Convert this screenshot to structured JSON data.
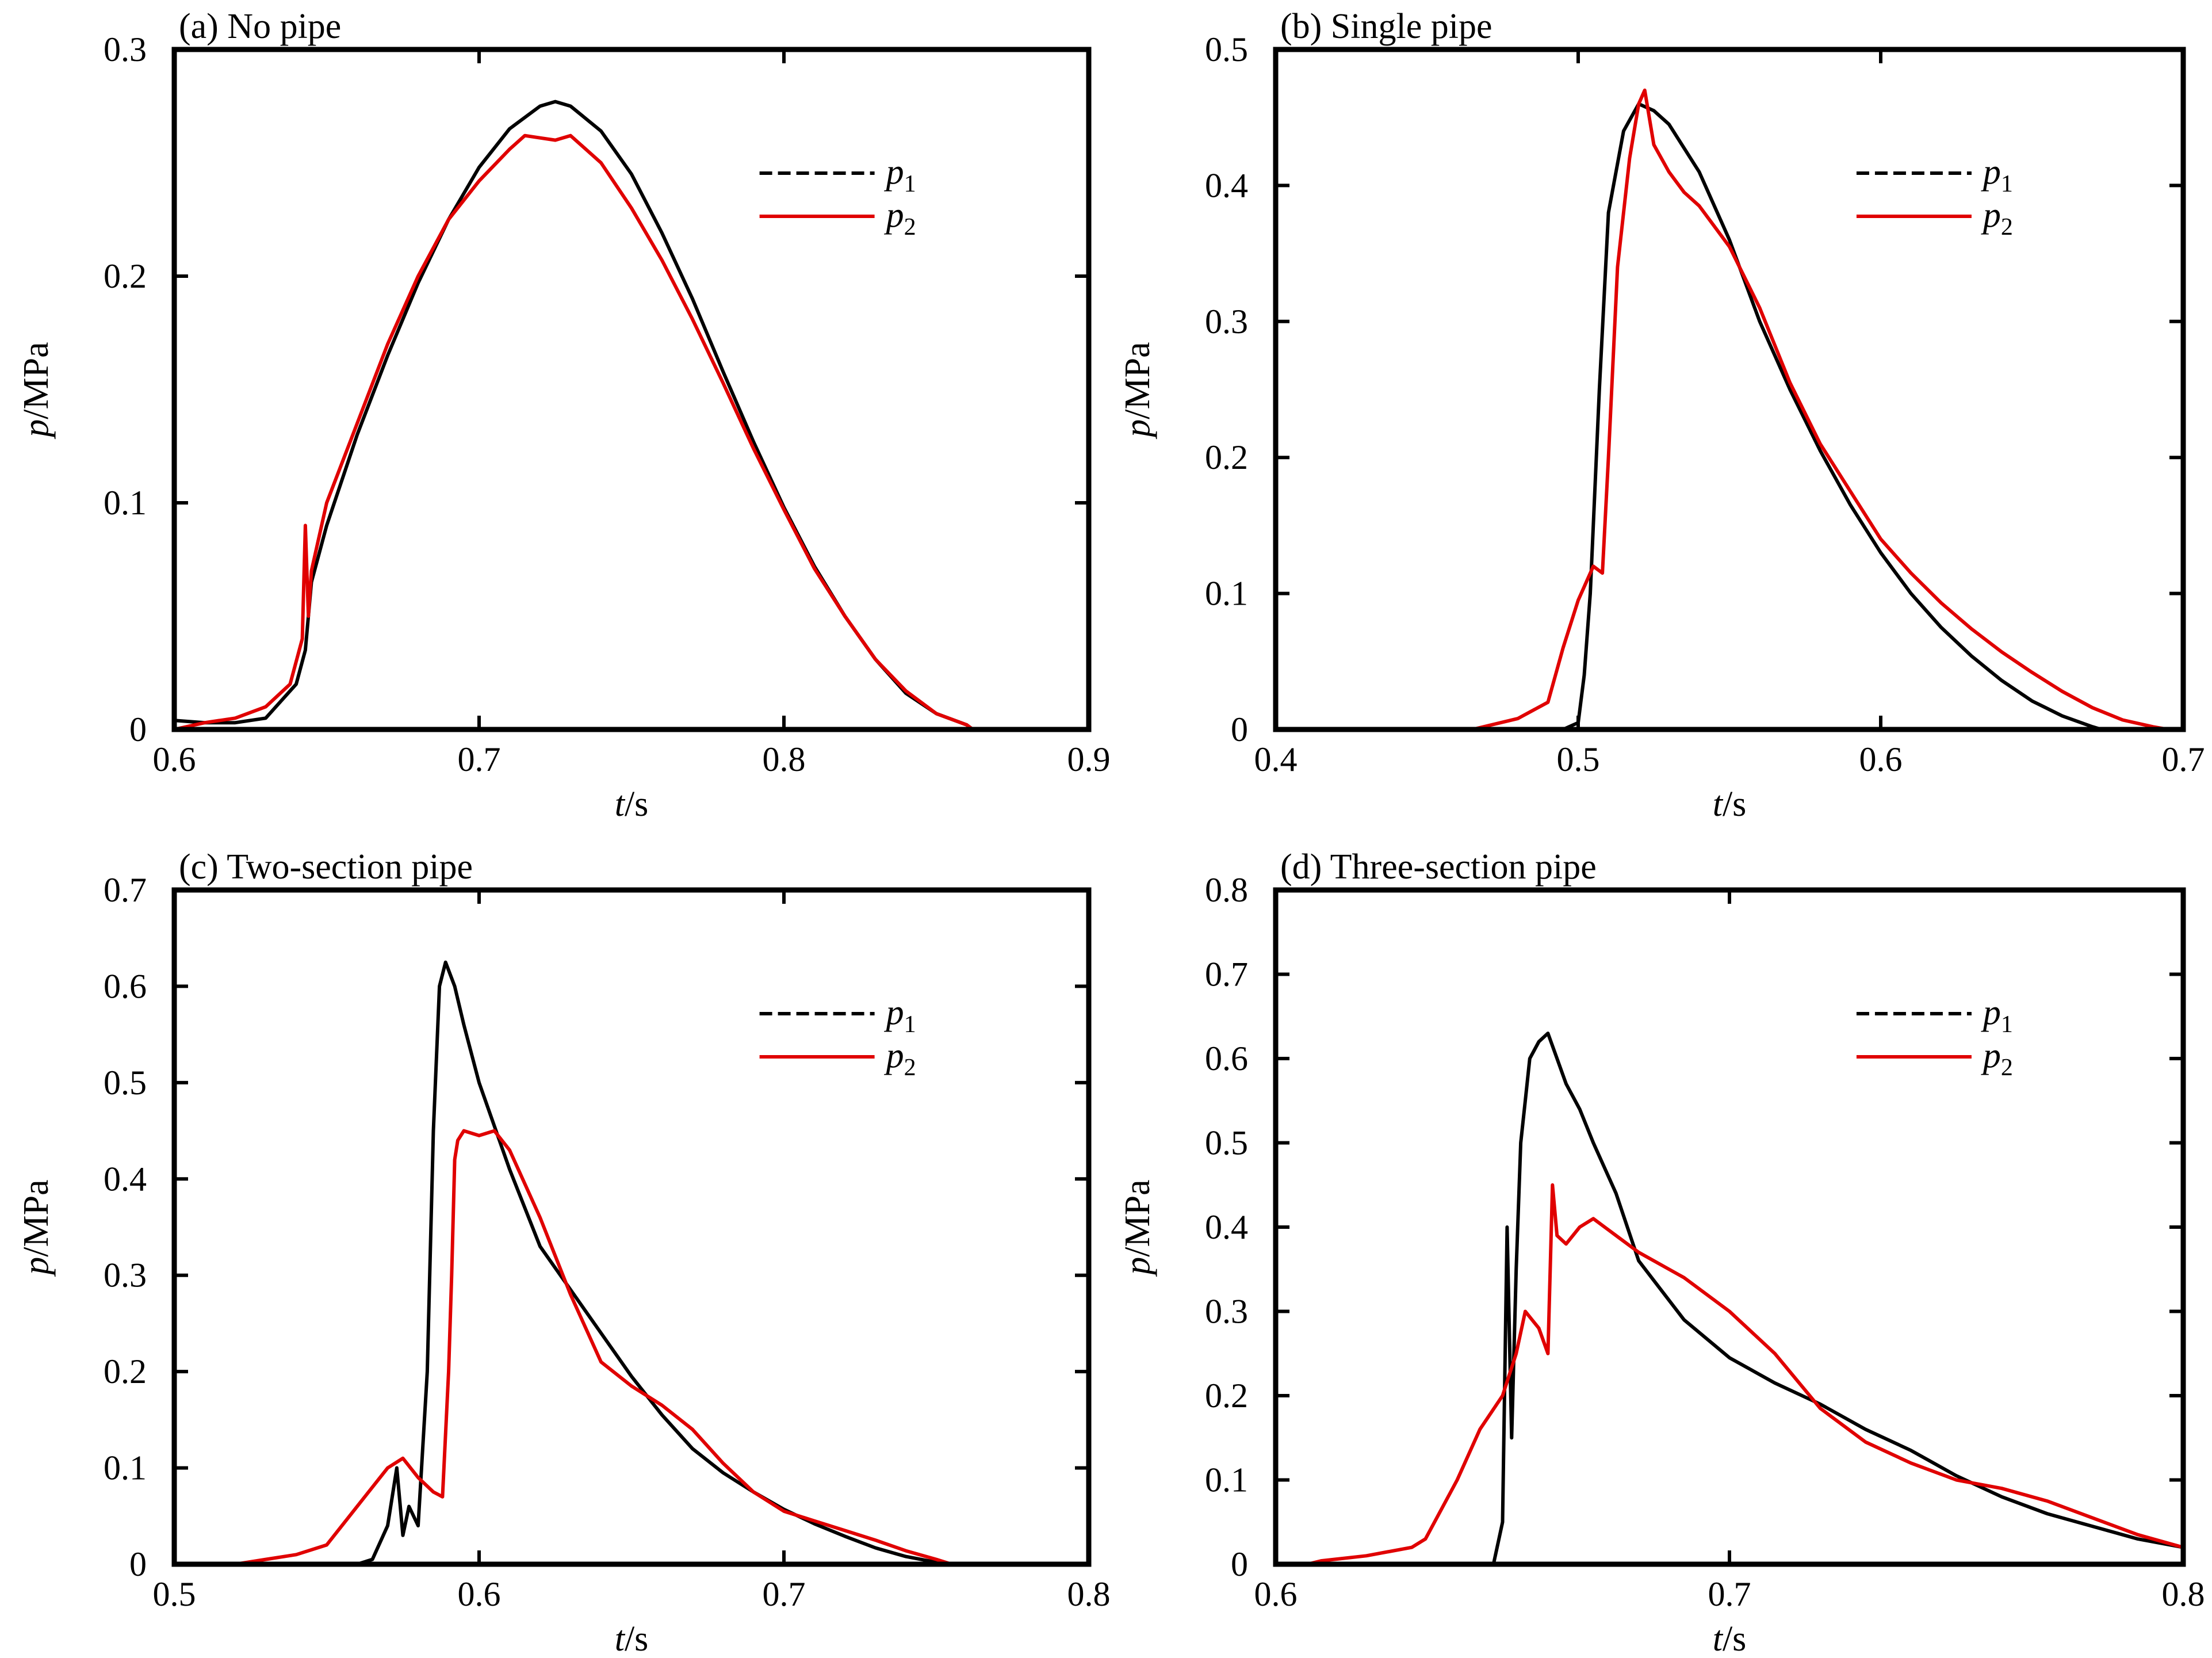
{
  "chart_data": [
    {
      "type": "line",
      "title": "(a)  No pipe",
      "xlabel_var": "t",
      "xlabel_unit": "/s",
      "ylabel_var": "p",
      "ylabel_unit": "/MPa",
      "xlim": [
        0.6,
        0.9
      ],
      "ylim": [
        0,
        0.3
      ],
      "xticks": [
        0.6,
        0.7,
        0.8,
        0.9
      ],
      "yticks": [
        0,
        0.1,
        0.2,
        0.3
      ],
      "xtick_labels": [
        "0.6",
        "0.7",
        "0.8",
        "0.9"
      ],
      "ytick_labels": [
        "0",
        "0.1",
        "0.2",
        "0.3"
      ],
      "legend": "top-right",
      "grid": false,
      "series": [
        {
          "name": "p",
          "sub": "1",
          "color": "#000000",
          "x": [
            0.6,
            0.61,
            0.62,
            0.63,
            0.64,
            0.643,
            0.645,
            0.65,
            0.66,
            0.67,
            0.68,
            0.69,
            0.7,
            0.71,
            0.72,
            0.725,
            0.73,
            0.74,
            0.75,
            0.76,
            0.77,
            0.78,
            0.79,
            0.8,
            0.81,
            0.82,
            0.83,
            0.84,
            0.85,
            0.86,
            0.862
          ],
          "y": [
            0.004,
            0.003,
            0.003,
            0.005,
            0.02,
            0.035,
            0.065,
            0.09,
            0.13,
            0.165,
            0.197,
            0.225,
            0.248,
            0.265,
            0.275,
            0.277,
            0.275,
            0.264,
            0.245,
            0.219,
            0.19,
            0.158,
            0.127,
            0.098,
            0.072,
            0.05,
            0.031,
            0.016,
            0.007,
            0.002,
            0.0
          ]
        },
        {
          "name": "p",
          "sub": "2",
          "color": "#e00000",
          "x": [
            0.6,
            0.61,
            0.62,
            0.63,
            0.638,
            0.642,
            0.643,
            0.644,
            0.645,
            0.65,
            0.66,
            0.67,
            0.68,
            0.69,
            0.7,
            0.71,
            0.715,
            0.72,
            0.725,
            0.73,
            0.74,
            0.75,
            0.76,
            0.77,
            0.78,
            0.79,
            0.8,
            0.81,
            0.82,
            0.83,
            0.84,
            0.85,
            0.86,
            0.862
          ],
          "y": [
            0.0,
            0.003,
            0.005,
            0.01,
            0.02,
            0.04,
            0.09,
            0.05,
            0.07,
            0.1,
            0.135,
            0.17,
            0.2,
            0.225,
            0.242,
            0.256,
            0.262,
            0.261,
            0.26,
            0.262,
            0.25,
            0.23,
            0.207,
            0.181,
            0.153,
            0.124,
            0.097,
            0.071,
            0.05,
            0.031,
            0.017,
            0.007,
            0.002,
            0.0
          ]
        }
      ]
    },
    {
      "type": "line",
      "title": "(b)  Single pipe",
      "xlabel_var": "t",
      "xlabel_unit": "/s",
      "ylabel_var": "p",
      "ylabel_unit": "/MPa",
      "xlim": [
        0.4,
        0.7
      ],
      "ylim": [
        0,
        0.5
      ],
      "xticks": [
        0.4,
        0.5,
        0.6,
        0.7
      ],
      "yticks": [
        0,
        0.1,
        0.2,
        0.3,
        0.4,
        0.5
      ],
      "xtick_labels": [
        "0.4",
        "0.5",
        "0.6",
        "0.7"
      ],
      "ytick_labels": [
        "0",
        "0.1",
        "0.2",
        "0.3",
        "0.4",
        "0.5"
      ],
      "legend": "top-right",
      "grid": false,
      "series": [
        {
          "name": "p",
          "sub": "1",
          "color": "#000000",
          "x": [
            0.495,
            0.5,
            0.502,
            0.504,
            0.507,
            0.51,
            0.515,
            0.52,
            0.525,
            0.53,
            0.54,
            0.55,
            0.56,
            0.57,
            0.58,
            0.59,
            0.6,
            0.61,
            0.62,
            0.63,
            0.64,
            0.65,
            0.66,
            0.67,
            0.673
          ],
          "y": [
            0.0,
            0.005,
            0.04,
            0.1,
            0.25,
            0.38,
            0.44,
            0.46,
            0.455,
            0.445,
            0.41,
            0.36,
            0.3,
            0.25,
            0.205,
            0.165,
            0.13,
            0.1,
            0.075,
            0.054,
            0.036,
            0.021,
            0.01,
            0.002,
            0.0
          ]
        },
        {
          "name": "p",
          "sub": "2",
          "color": "#e00000",
          "x": [
            0.465,
            0.48,
            0.49,
            0.495,
            0.5,
            0.505,
            0.508,
            0.51,
            0.513,
            0.517,
            0.52,
            0.522,
            0.525,
            0.53,
            0.535,
            0.54,
            0.55,
            0.56,
            0.57,
            0.58,
            0.59,
            0.6,
            0.61,
            0.62,
            0.63,
            0.64,
            0.65,
            0.66,
            0.67,
            0.68,
            0.69,
            0.695
          ],
          "y": [
            0.0,
            0.008,
            0.02,
            0.06,
            0.095,
            0.12,
            0.115,
            0.2,
            0.34,
            0.42,
            0.46,
            0.47,
            0.43,
            0.41,
            0.395,
            0.385,
            0.355,
            0.31,
            0.255,
            0.21,
            0.175,
            0.14,
            0.115,
            0.093,
            0.074,
            0.057,
            0.042,
            0.028,
            0.016,
            0.007,
            0.002,
            0.0
          ]
        }
      ]
    },
    {
      "type": "line",
      "title": "(c)  Two-section pipe",
      "xlabel_var": "t",
      "xlabel_unit": "/s",
      "ylabel_var": "p",
      "ylabel_unit": "/MPa",
      "xlim": [
        0.5,
        0.8
      ],
      "ylim": [
        0,
        0.7
      ],
      "xticks": [
        0.5,
        0.6,
        0.7,
        0.8
      ],
      "yticks": [
        0,
        0.1,
        0.2,
        0.3,
        0.4,
        0.5,
        0.6,
        0.7
      ],
      "xtick_labels": [
        "0.5",
        "0.6",
        "0.7",
        "0.8"
      ],
      "ytick_labels": [
        "0",
        "0.1",
        "0.2",
        "0.3",
        "0.4",
        "0.5",
        "0.6",
        "0.7"
      ],
      "legend": "top-right",
      "grid": false,
      "series": [
        {
          "name": "p",
          "sub": "1",
          "color": "#000000",
          "x": [
            0.56,
            0.565,
            0.57,
            0.572,
            0.573,
            0.575,
            0.577,
            0.58,
            0.583,
            0.585,
            0.587,
            0.589,
            0.592,
            0.595,
            0.6,
            0.61,
            0.62,
            0.63,
            0.64,
            0.65,
            0.66,
            0.67,
            0.68,
            0.69,
            0.7,
            0.71,
            0.72,
            0.73,
            0.74,
            0.75,
            0.755
          ],
          "y": [
            0.0,
            0.005,
            0.04,
            0.08,
            0.1,
            0.03,
            0.06,
            0.04,
            0.2,
            0.45,
            0.6,
            0.625,
            0.6,
            0.56,
            0.5,
            0.41,
            0.33,
            0.285,
            0.24,
            0.195,
            0.155,
            0.12,
            0.095,
            0.075,
            0.057,
            0.042,
            0.029,
            0.017,
            0.008,
            0.002,
            0.0
          ]
        },
        {
          "name": "p",
          "sub": "2",
          "color": "#e00000",
          "x": [
            0.52,
            0.53,
            0.54,
            0.55,
            0.555,
            0.56,
            0.57,
            0.575,
            0.58,
            0.585,
            0.588,
            0.59,
            0.591,
            0.592,
            0.593,
            0.595,
            0.6,
            0.605,
            0.61,
            0.62,
            0.63,
            0.64,
            0.65,
            0.66,
            0.67,
            0.68,
            0.69,
            0.7,
            0.71,
            0.72,
            0.73,
            0.74,
            0.75,
            0.755
          ],
          "y": [
            0.0,
            0.005,
            0.01,
            0.02,
            0.04,
            0.06,
            0.1,
            0.11,
            0.09,
            0.075,
            0.07,
            0.2,
            0.3,
            0.42,
            0.44,
            0.45,
            0.445,
            0.45,
            0.43,
            0.36,
            0.28,
            0.21,
            0.185,
            0.165,
            0.14,
            0.105,
            0.075,
            0.055,
            0.045,
            0.035,
            0.025,
            0.014,
            0.005,
            0.0
          ]
        }
      ]
    },
    {
      "type": "line",
      "title": "(d)  Three-section pipe",
      "xlabel_var": "t",
      "xlabel_unit": "/s",
      "ylabel_var": "p",
      "ylabel_unit": "/MPa",
      "xlim": [
        0.6,
        0.8
      ],
      "ylim": [
        0,
        0.8
      ],
      "xticks": [
        0.6,
        0.7,
        0.8
      ],
      "yticks": [
        0,
        0.1,
        0.2,
        0.3,
        0.4,
        0.5,
        0.6,
        0.7,
        0.8
      ],
      "xtick_labels": [
        "0.6",
        "0.7",
        "0.8"
      ],
      "ytick_labels": [
        "0",
        "0.1",
        "0.2",
        "0.3",
        "0.4",
        "0.5",
        "0.6",
        "0.7",
        "0.8"
      ],
      "legend": "top-right",
      "grid": false,
      "series": [
        {
          "name": "p",
          "sub": "1",
          "color": "#000000",
          "x": [
            0.648,
            0.65,
            0.651,
            0.652,
            0.653,
            0.654,
            0.655,
            0.656,
            0.658,
            0.66,
            0.662,
            0.664,
            0.667,
            0.67,
            0.675,
            0.68,
            0.69,
            0.7,
            0.71,
            0.72,
            0.73,
            0.74,
            0.75,
            0.76,
            0.77,
            0.78,
            0.79,
            0.8
          ],
          "y": [
            0.0,
            0.05,
            0.4,
            0.15,
            0.35,
            0.5,
            0.55,
            0.6,
            0.62,
            0.63,
            0.6,
            0.57,
            0.54,
            0.5,
            0.44,
            0.36,
            0.29,
            0.245,
            0.215,
            0.19,
            0.16,
            0.135,
            0.105,
            0.08,
            0.06,
            0.045,
            0.03,
            0.02
          ]
        },
        {
          "name": "p",
          "sub": "2",
          "color": "#e00000",
          "x": [
            0.607,
            0.61,
            0.62,
            0.63,
            0.633,
            0.64,
            0.645,
            0.65,
            0.653,
            0.655,
            0.658,
            0.66,
            0.661,
            0.662,
            0.664,
            0.667,
            0.67,
            0.675,
            0.68,
            0.69,
            0.7,
            0.71,
            0.72,
            0.73,
            0.74,
            0.75,
            0.76,
            0.77,
            0.78,
            0.79,
            0.8
          ],
          "y": [
            0.0,
            0.004,
            0.01,
            0.02,
            0.03,
            0.1,
            0.16,
            0.2,
            0.25,
            0.3,
            0.28,
            0.25,
            0.45,
            0.39,
            0.38,
            0.4,
            0.41,
            0.39,
            0.37,
            0.34,
            0.3,
            0.25,
            0.185,
            0.145,
            0.12,
            0.1,
            0.09,
            0.075,
            0.055,
            0.035,
            0.02
          ]
        }
      ]
    }
  ]
}
